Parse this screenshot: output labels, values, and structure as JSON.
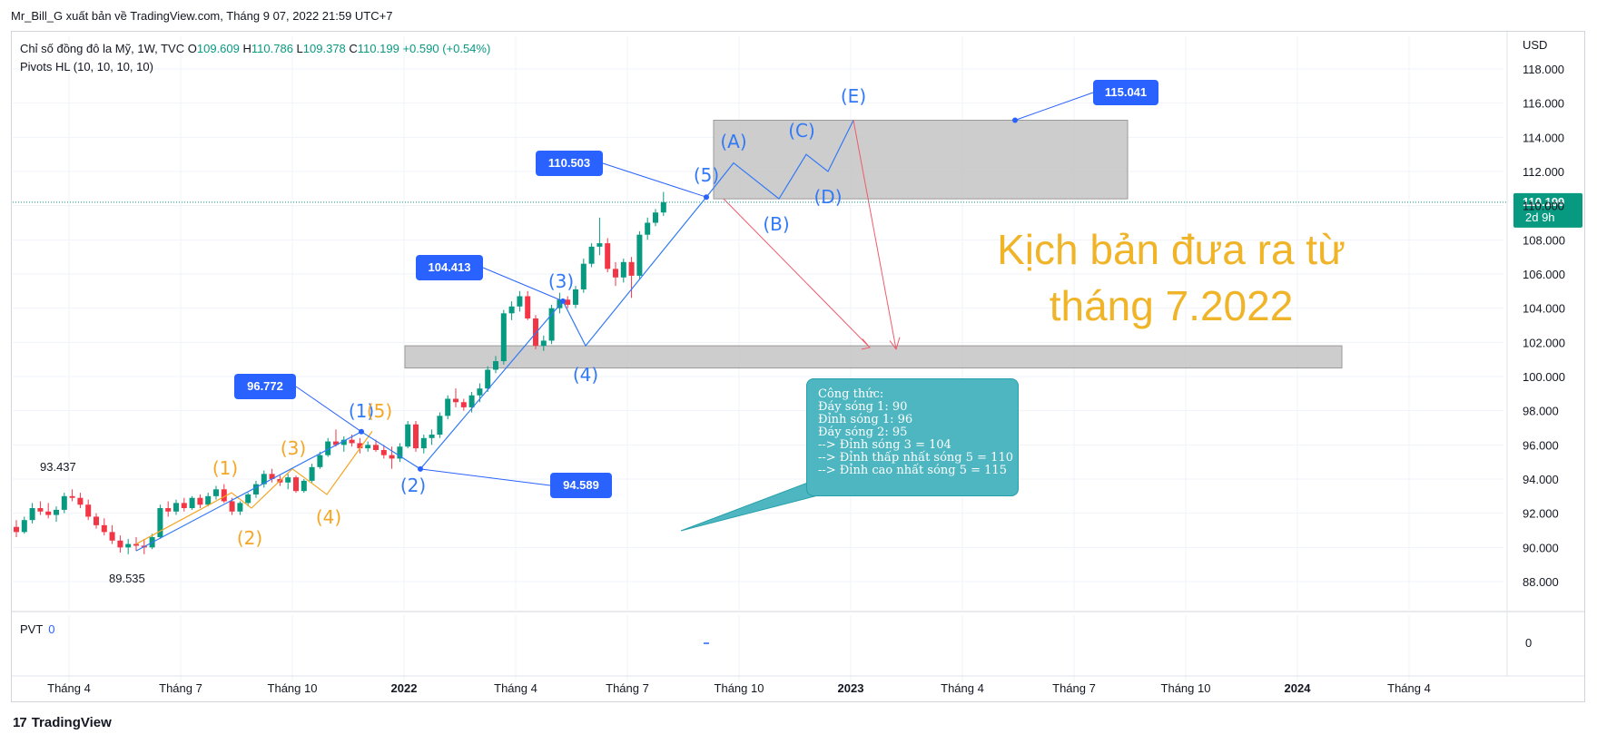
{
  "header": {
    "text": "Mr_Bill_G xuất bản về TradingView.com, Tháng 9 07, 2022 21:59 UTC+7"
  },
  "legend": {
    "symbol": "Chỉ số đồng đô la Mỹ, 1W, TVC",
    "o_label": "O",
    "o_value": "109.609",
    "h_label": "H",
    "h_value": "110.786",
    "l_label": "L",
    "l_value": "109.378",
    "c_label": "C",
    "c_value": "110.199",
    "change": "+0.590 (+0.54%)",
    "indicator": "Pivots HL (10, 10, 10, 10)"
  },
  "pvt": {
    "label": "PVT",
    "value": "0"
  },
  "price_axis": {
    "currency": "USD",
    "ticks": [
      "118.000",
      "116.000",
      "114.000",
      "112.000",
      "110.000",
      "108.000",
      "106.000",
      "104.000",
      "102.000",
      "100.000",
      "98.000",
      "96.000",
      "94.000",
      "92.000",
      "90.000",
      "88.000"
    ],
    "last_price": "110.199",
    "countdown": "2d 9h",
    "pvt_tick": "0"
  },
  "time_axis": {
    "ticks": [
      "Tháng 4",
      "Tháng 7",
      "Tháng 10",
      "2022",
      "Tháng 4",
      "Tháng 7",
      "Tháng 10",
      "2023",
      "Tháng 4",
      "Tháng 7",
      "Tháng 10",
      "2024",
      "Tháng 4"
    ]
  },
  "annotations": {
    "pivot_high_1": "93.437",
    "pivot_low_1": "89.535",
    "price_labels": [
      "96.772",
      "94.589",
      "104.413",
      "110.503",
      "115.041"
    ],
    "blue_waves": [
      "(1)",
      "(2)",
      "(3)",
      "(4)",
      "(5)"
    ],
    "orange_waves": [
      "(1)",
      "(2)",
      "(3)",
      "(4)",
      "(5)"
    ],
    "abcde": [
      "(A)",
      "(B)",
      "(C)",
      "(D)",
      "(E)"
    ]
  },
  "formula": {
    "lines": [
      "Công thức:",
      "Đáy sóng 1: 90",
      "Đỉnh sóng 1: 96",
      "Đáy sóng 2: 95",
      "--> Đỉnh sóng 3 = 104",
      "--> Đỉnh thấp nhất sóng 5 = 110",
      "--> Đỉnh cao nhất sóng 5 = 115"
    ]
  },
  "scenario": {
    "line1": "Kịch bản đưa ra từ",
    "line2": "tháng 7.2022"
  },
  "footer": {
    "brand": "TradingView",
    "logo_mark": "17"
  },
  "colors": {
    "up": "#089981",
    "down": "#f23645",
    "wave_blue": "#3179f5",
    "wave_orange": "#f5a623",
    "label_blue": "#2962ff",
    "zone_grey": "#c4c4c4",
    "scenario_text": "#f0b429",
    "formula_bg": "#4db6c0"
  },
  "chart_data": {
    "type": "candlestick",
    "timeframe": "1W",
    "ylim": [
      87,
      119
    ],
    "candles": [
      [
        91.2,
        91.6,
        90.6,
        90.9
      ],
      [
        90.9,
        91.8,
        90.8,
        91.6
      ],
      [
        91.6,
        92.6,
        91.4,
        92.3
      ],
      [
        92.3,
        92.7,
        91.9,
        92.1
      ],
      [
        92.1,
        92.6,
        91.7,
        91.9
      ],
      [
        91.9,
        92.4,
        91.5,
        92.2
      ],
      [
        92.2,
        93.2,
        92.0,
        93.0
      ],
      [
        93.0,
        93.4,
        92.7,
        92.9
      ],
      [
        92.9,
        93.2,
        92.3,
        92.5
      ],
      [
        92.5,
        92.8,
        91.6,
        91.8
      ],
      [
        91.8,
        92.0,
        91.1,
        91.3
      ],
      [
        91.3,
        91.7,
        90.7,
        90.9
      ],
      [
        90.9,
        91.3,
        90.2,
        90.4
      ],
      [
        90.4,
        90.7,
        89.7,
        90.0
      ],
      [
        90.0,
        90.5,
        89.6,
        90.2
      ],
      [
        90.2,
        90.6,
        89.8,
        90.1
      ],
      [
        90.1,
        90.5,
        89.6,
        90.0
      ],
      [
        90.0,
        90.8,
        89.9,
        90.6
      ],
      [
        90.6,
        92.5,
        90.5,
        92.3
      ],
      [
        92.3,
        92.7,
        91.8,
        92.1
      ],
      [
        92.1,
        92.8,
        91.9,
        92.6
      ],
      [
        92.6,
        92.9,
        92.1,
        92.3
      ],
      [
        92.3,
        93.0,
        92.2,
        92.9
      ],
      [
        92.9,
        93.1,
        92.3,
        92.5
      ],
      [
        92.5,
        93.2,
        92.4,
        93.0
      ],
      [
        93.0,
        93.6,
        92.8,
        93.4
      ],
      [
        93.4,
        93.7,
        92.6,
        92.7
      ],
      [
        92.7,
        92.9,
        91.9,
        92.1
      ],
      [
        92.1,
        92.7,
        91.9,
        92.6
      ],
      [
        92.6,
        93.2,
        92.4,
        93.1
      ],
      [
        93.1,
        93.9,
        92.9,
        93.7
      ],
      [
        93.7,
        94.5,
        93.5,
        94.3
      ],
      [
        94.3,
        94.6,
        93.8,
        94.0
      ],
      [
        94.0,
        94.2,
        93.6,
        93.8
      ],
      [
        93.8,
        94.3,
        93.4,
        94.1
      ],
      [
        94.1,
        94.2,
        93.2,
        93.3
      ],
      [
        93.3,
        94.0,
        93.2,
        93.9
      ],
      [
        93.9,
        94.9,
        93.8,
        94.7
      ],
      [
        94.7,
        95.6,
        94.6,
        95.4
      ],
      [
        95.4,
        96.4,
        95.3,
        96.2
      ],
      [
        96.2,
        96.9,
        95.9,
        96.0
      ],
      [
        96.0,
        96.5,
        95.6,
        96.3
      ],
      [
        96.3,
        96.6,
        95.9,
        96.1
      ],
      [
        96.1,
        96.4,
        95.5,
        95.8
      ],
      [
        95.8,
        96.2,
        95.6,
        96.0
      ],
      [
        96.0,
        96.3,
        95.6,
        95.7
      ],
      [
        95.7,
        96.0,
        95.2,
        95.4
      ],
      [
        95.4,
        95.9,
        94.6,
        95.2
      ],
      [
        95.2,
        96.1,
        95.0,
        95.9
      ],
      [
        95.9,
        97.4,
        95.8,
        97.2
      ],
      [
        97.2,
        97.4,
        95.6,
        95.8
      ],
      [
        95.8,
        96.6,
        95.5,
        96.4
      ],
      [
        96.4,
        96.9,
        96.0,
        96.6
      ],
      [
        96.6,
        97.9,
        96.4,
        97.7
      ],
      [
        97.7,
        98.9,
        97.5,
        98.7
      ],
      [
        98.7,
        99.3,
        98.2,
        98.5
      ],
      [
        98.5,
        98.7,
        98.0,
        98.2
      ],
      [
        98.2,
        99.1,
        97.9,
        98.9
      ],
      [
        98.9,
        99.6,
        98.5,
        99.3
      ],
      [
        99.3,
        100.6,
        99.1,
        100.4
      ],
      [
        100.4,
        101.2,
        100.2,
        100.9
      ],
      [
        100.9,
        103.9,
        100.7,
        103.7
      ],
      [
        103.7,
        104.4,
        103.3,
        104.1
      ],
      [
        104.1,
        105.0,
        103.8,
        104.7
      ],
      [
        104.7,
        105.0,
        103.3,
        103.4
      ],
      [
        103.4,
        103.6,
        101.6,
        101.8
      ],
      [
        101.8,
        102.4,
        101.5,
        102.1
      ],
      [
        102.1,
        104.2,
        101.9,
        104.0
      ],
      [
        104.0,
        104.9,
        103.7,
        104.5
      ],
      [
        104.5,
        104.7,
        104.0,
        104.2
      ],
      [
        104.2,
        105.3,
        104.0,
        105.1
      ],
      [
        105.1,
        106.9,
        104.9,
        106.6
      ],
      [
        106.6,
        107.8,
        106.4,
        107.6
      ],
      [
        107.6,
        109.3,
        107.1,
        107.8
      ],
      [
        107.8,
        108.1,
        106.1,
        106.3
      ],
      [
        106.3,
        106.7,
        105.3,
        105.8
      ],
      [
        105.8,
        106.9,
        105.5,
        106.7
      ],
      [
        106.7,
        107.0,
        104.6,
        105.9
      ],
      [
        105.9,
        108.5,
        105.7,
        108.3
      ],
      [
        108.3,
        109.3,
        108.0,
        109.0
      ],
      [
        109.0,
        109.8,
        108.8,
        109.6
      ],
      [
        109.6,
        110.8,
        109.4,
        110.2
      ]
    ],
    "blue_wave_path": [
      [
        89.8
      ],
      [
        96.772
      ],
      [
        94.589
      ],
      [
        104.413
      ],
      [
        101.8
      ],
      [
        110.503
      ],
      [
        112.5
      ],
      [
        110.4
      ],
      [
        113.0
      ],
      [
        112.0
      ],
      [
        115.0
      ]
    ],
    "zones": [
      {
        "name": "target-zone",
        "y_top": 115.0,
        "y_bottom": 110.4
      },
      {
        "name": "support-zone",
        "y_top": 101.8,
        "y_bottom": 100.5
      }
    ]
  }
}
